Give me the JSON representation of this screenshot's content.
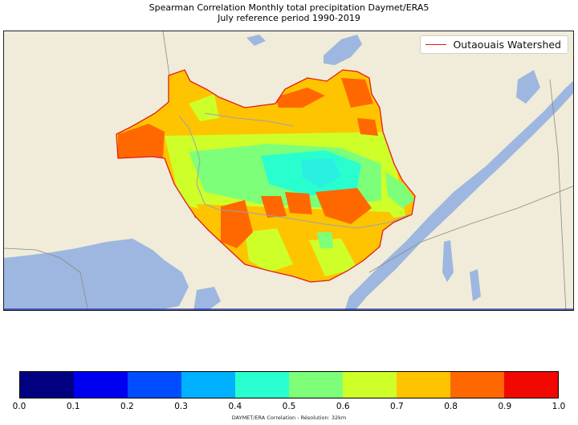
{
  "title": {
    "line1": "Spearman Correlation Monthly total precipitation Daymet/ERA5",
    "line2": "July reference period 1990-2019"
  },
  "legend": {
    "label": "Outaouais Watershed",
    "color": "#e41a1c"
  },
  "map": {
    "background_color": "#f0ecd9",
    "water_color": "#9db7e0",
    "boundary_color": "#e41a1c"
  },
  "colorbar": {
    "colors": [
      "#000080",
      "#0000f1",
      "#004dff",
      "#00b1ff",
      "#29ffce",
      "#7dff7a",
      "#ceff29",
      "#ffc400",
      "#ff6800",
      "#f10800"
    ],
    "ticks": [
      "0.0",
      "0.1",
      "0.2",
      "0.3",
      "0.4",
      "0.5",
      "0.6",
      "0.7",
      "0.8",
      "0.9",
      "1.0"
    ]
  },
  "credit": "DAYMET/ERA Correlation - Résolution: 32km",
  "chart_data": {
    "type": "heatmap",
    "title": "Spearman Correlation Monthly total precipitation Daymet/ERA5",
    "subtitle": "July reference period 1990-2019",
    "value_range": [
      0.0,
      1.0
    ],
    "bins": [
      0.0,
      0.1,
      0.2,
      0.3,
      0.4,
      0.5,
      0.6,
      0.7,
      0.8,
      0.9,
      1.0
    ],
    "legend": [
      "Outaouais Watershed"
    ]
  }
}
